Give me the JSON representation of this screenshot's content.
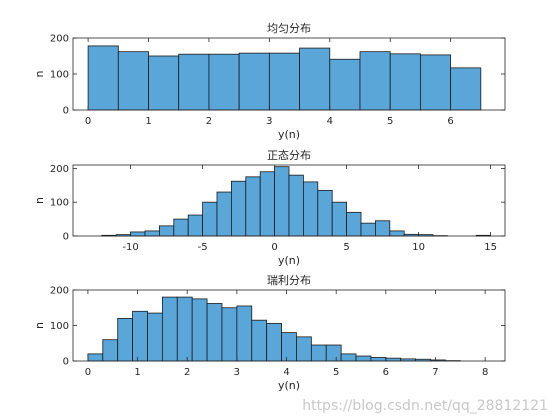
{
  "chart_data": [
    {
      "type": "bar",
      "title": "均匀分布",
      "xlabel": "y(n)",
      "ylabel": "n",
      "xlim": [
        -0.25,
        6.9
      ],
      "ylim": [
        0,
        200
      ],
      "xticks": [
        "0",
        "1",
        "2",
        "3",
        "4",
        "5",
        "6"
      ],
      "yticks": [
        "0",
        "100",
        "200"
      ],
      "bin_start": 0,
      "bin_width": 0.5,
      "values": [
        178,
        162,
        150,
        155,
        155,
        158,
        158,
        172,
        141,
        162,
        156,
        153,
        117
      ],
      "bar_color": "#5ba6d8"
    },
    {
      "type": "bar",
      "title": "正态分布",
      "xlabel": "y(n)",
      "ylabel": "n",
      "xlim": [
        -14,
        16
      ],
      "ylim": [
        0,
        210
      ],
      "xticks": [
        "-10",
        "-5",
        "0",
        "5",
        "10",
        "15"
      ],
      "yticks": [
        "0",
        "100",
        "200"
      ],
      "bin_start": -12,
      "bin_width": 1,
      "values": [
        2,
        4,
        12,
        15,
        30,
        50,
        62,
        100,
        130,
        162,
        175,
        190,
        205,
        180,
        160,
        135,
        100,
        70,
        38,
        45,
        15,
        5,
        4,
        1,
        0,
        0,
        2
      ],
      "bar_color": "#5ba6d8"
    },
    {
      "type": "bar",
      "title": "瑞利分布",
      "xlabel": "y(n)",
      "ylabel": "n",
      "xlim": [
        -0.3,
        8.4
      ],
      "ylim": [
        0,
        200
      ],
      "xticks": [
        "0",
        "1",
        "2",
        "3",
        "4",
        "5",
        "6",
        "7",
        "8"
      ],
      "yticks": [
        "0",
        "100",
        "200"
      ],
      "bin_start": 0,
      "bin_width": 0.3,
      "values": [
        20,
        60,
        120,
        140,
        135,
        180,
        180,
        175,
        162,
        150,
        155,
        115,
        106,
        80,
        68,
        45,
        45,
        20,
        14,
        10,
        8,
        6,
        5,
        3,
        1
      ],
      "bar_color": "#5ba6d8"
    }
  ],
  "watermark": "https://blog.csdn.net/qq_28812121"
}
